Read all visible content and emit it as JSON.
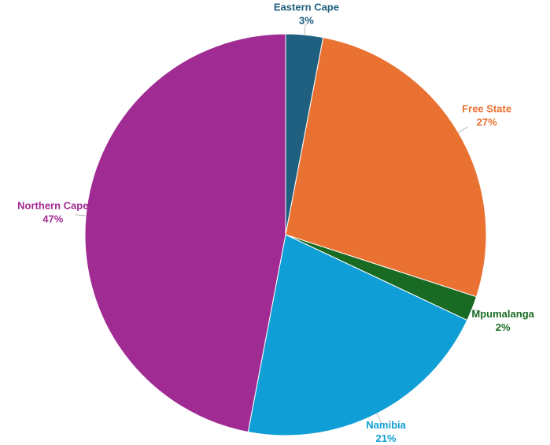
{
  "chart_data": {
    "type": "pie",
    "categories": [
      "Eastern Cape",
      "Free State",
      "Mpumalanga",
      "Namibia",
      "Northern Cape"
    ],
    "values": [
      3,
      27,
      2,
      21,
      47
    ],
    "value_labels": [
      "3%",
      "27%",
      "2%",
      "21%",
      "47%"
    ],
    "colors": [
      "#1f5f7f",
      "#e97132",
      "#196b24",
      "#0f9ed5",
      "#a02b93"
    ]
  }
}
